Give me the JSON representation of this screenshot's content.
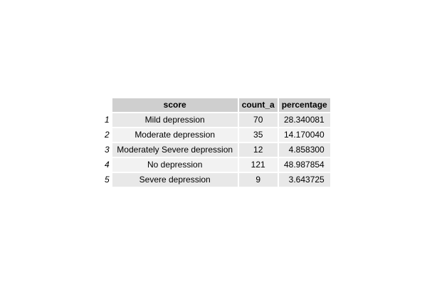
{
  "table": {
    "columns": [
      "score",
      "count_a",
      "percentage"
    ],
    "rows": [
      {
        "index": "1",
        "score": "Mild depression",
        "count_a": "70",
        "percentage": "28.340081"
      },
      {
        "index": "2",
        "score": "Moderate depression",
        "count_a": "35",
        "percentage": "14.170040"
      },
      {
        "index": "3",
        "score": "Moderately Severe depression",
        "count_a": "12",
        "percentage": "4.858300"
      },
      {
        "index": "4",
        "score": "No depression",
        "count_a": "121",
        "percentage": "48.987854"
      },
      {
        "index": "5",
        "score": "Severe depression",
        "count_a": "9",
        "percentage": "3.643725"
      }
    ]
  },
  "colors": {
    "header_bg": "#cfcfcf",
    "row_odd_bg": "#e8e8e8",
    "row_even_bg": "#f2f2f2"
  }
}
